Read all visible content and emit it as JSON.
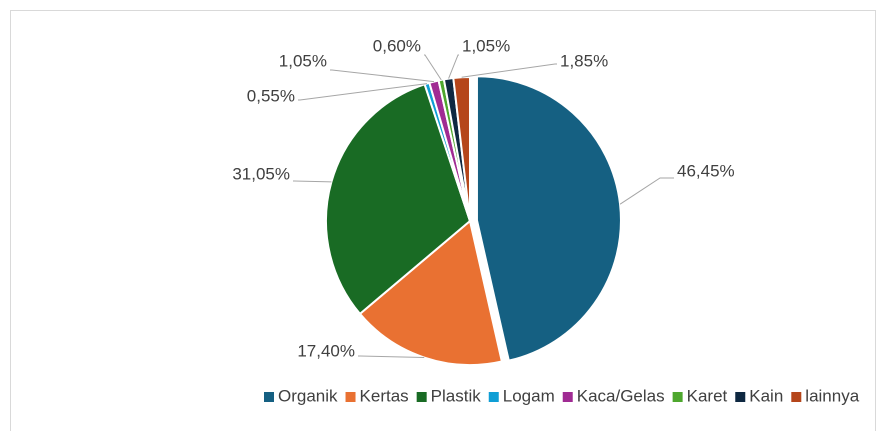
{
  "chart_data": {
    "type": "pie",
    "categories": [
      "Organik",
      "Kertas",
      "Plastik",
      "Logam",
      "Kaca/Gelas",
      "Karet",
      "Kain",
      "lainnya"
    ],
    "values": [
      46.45,
      17.4,
      31.05,
      0.55,
      1.05,
      0.6,
      1.05,
      1.85
    ],
    "value_labels": [
      "46,45%",
      "17,40%",
      "31,05%",
      "0,55%",
      "1,05%",
      "0,60%",
      "1,05%",
      "1,85%"
    ],
    "colors": [
      "#156082",
      "#e97132",
      "#196b24",
      "#0f9ed5",
      "#a02b93",
      "#4ea72e",
      "#0e2841",
      "#b5461b"
    ],
    "legend": "bottom"
  }
}
